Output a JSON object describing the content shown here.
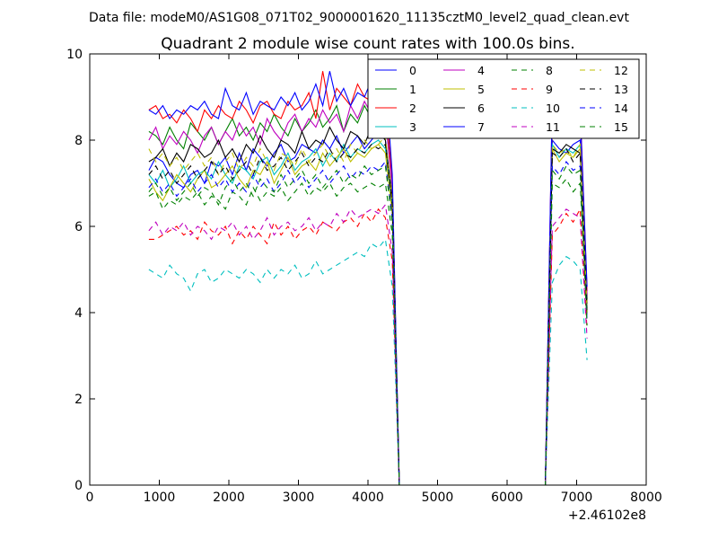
{
  "figure": {
    "suptitle": "Data file: modeM0/AS1G08_071T02_9000001620_11135cztM0_level2_quad_clean.evt",
    "x_offset_label": "+2.46102e8"
  },
  "chart_data": {
    "type": "line",
    "title": "Quadrant 2 module wise count rates with 100.0s bins.",
    "xlabel": "",
    "ylabel": "",
    "xlim": [
      0,
      8000
    ],
    "ylim": [
      0,
      10
    ],
    "xticks": [
      0,
      1000,
      2000,
      3000,
      4000,
      5000,
      6000,
      7000,
      8000
    ],
    "yticks": [
      0,
      2,
      4,
      6,
      8,
      10
    ],
    "grid": false,
    "legend": {
      "placement": "top-right",
      "columns": 4
    },
    "x": [
      850,
      950,
      1050,
      1150,
      1250,
      1350,
      1450,
      1550,
      1650,
      1750,
      1850,
      1950,
      2050,
      2150,
      2250,
      2350,
      2450,
      2550,
      2650,
      2750,
      2850,
      2950,
      3050,
      3150,
      3250,
      3350,
      3450,
      3550,
      3650,
      3750,
      3850,
      3950,
      4050,
      4150,
      4250,
      4350,
      4450,
      4550,
      6550,
      6650,
      6750,
      6850,
      6950,
      7050,
      7150
    ],
    "series": [
      {
        "name": "0",
        "color": "#0000ff",
        "dash": "solid",
        "values": [
          7.3,
          7.6,
          7.5,
          7.2,
          7.0,
          6.9,
          7.2,
          7.3,
          7.0,
          7.5,
          7.4,
          7.6,
          7.2,
          7.7,
          7.3,
          7.8,
          7.6,
          7.4,
          7.7,
          7.9,
          7.5,
          7.6,
          7.9,
          7.8,
          7.7,
          8.0,
          7.8,
          8.1,
          7.7,
          7.9,
          8.1,
          7.8,
          8.0,
          8.2,
          8.0,
          6.5,
          0.0,
          0.0,
          0.0,
          8.0,
          7.8,
          7.7,
          7.9,
          8.0,
          4.2
        ]
      },
      {
        "name": "1",
        "color": "#008000",
        "dash": "solid",
        "values": [
          8.2,
          8.1,
          7.9,
          8.3,
          8.0,
          7.8,
          8.4,
          8.2,
          8.0,
          8.3,
          7.9,
          8.2,
          8.5,
          8.1,
          8.3,
          8.0,
          8.4,
          8.2,
          8.6,
          8.3,
          8.1,
          8.5,
          8.2,
          8.4,
          8.7,
          8.3,
          8.5,
          8.8,
          8.2,
          8.6,
          8.4,
          8.8,
          8.5,
          8.9,
          8.7,
          6.8,
          0.0,
          0.0,
          0.0,
          8.6,
          8.3,
          8.5,
          8.4,
          8.7,
          4.3
        ]
      },
      {
        "name": "2",
        "color": "#ff0000",
        "dash": "solid",
        "values": [
          8.7,
          8.8,
          8.5,
          8.6,
          8.4,
          8.7,
          8.5,
          8.2,
          8.7,
          8.5,
          8.8,
          8.6,
          8.5,
          8.9,
          8.7,
          8.4,
          8.8,
          8.9,
          8.6,
          8.5,
          8.9,
          8.7,
          8.8,
          9.1,
          8.5,
          9.6,
          8.7,
          9.2,
          9.0,
          8.8,
          9.3,
          9.0,
          8.9,
          9.2,
          9.0,
          7.0,
          0.0,
          0.0,
          0.0,
          8.8,
          8.5,
          8.7,
          8.6,
          8.8,
          4.5
        ]
      },
      {
        "name": "3",
        "color": "#00bfbf",
        "dash": "solid",
        "values": [
          7.2,
          7.0,
          7.3,
          6.9,
          7.1,
          7.4,
          7.0,
          7.2,
          7.3,
          7.1,
          7.5,
          7.2,
          7.0,
          7.4,
          7.3,
          7.1,
          7.5,
          7.6,
          7.2,
          7.4,
          7.7,
          7.3,
          7.5,
          7.6,
          7.8,
          7.4,
          7.7,
          7.5,
          7.9,
          7.6,
          7.8,
          7.7,
          7.9,
          8.0,
          7.8,
          6.4,
          0.0,
          0.0,
          0.0,
          7.9,
          7.6,
          7.8,
          7.7,
          7.9,
          4.1
        ]
      },
      {
        "name": "4",
        "color": "#bf00bf",
        "dash": "solid",
        "values": [
          8.0,
          8.3,
          7.8,
          8.1,
          7.9,
          8.2,
          8.0,
          7.7,
          8.1,
          8.3,
          7.9,
          8.2,
          8.0,
          8.4,
          8.1,
          8.3,
          7.9,
          8.5,
          8.2,
          8.0,
          8.4,
          8.6,
          8.2,
          8.5,
          8.3,
          8.7,
          8.4,
          8.6,
          8.2,
          8.8,
          8.5,
          8.9,
          8.6,
          8.8,
          8.5,
          6.9,
          0.0,
          0.0,
          0.0,
          9.0,
          8.6,
          8.8,
          8.7,
          8.6,
          4.4
        ]
      },
      {
        "name": "5",
        "color": "#bfbf00",
        "dash": "solid",
        "values": [
          7.1,
          6.8,
          6.6,
          6.9,
          7.2,
          7.0,
          6.8,
          7.1,
          7.3,
          6.9,
          7.0,
          7.2,
          7.4,
          7.1,
          6.9,
          7.3,
          7.2,
          7.5,
          7.0,
          7.3,
          7.6,
          7.2,
          7.4,
          7.5,
          7.3,
          7.7,
          7.4,
          7.6,
          7.8,
          7.5,
          7.7,
          7.6,
          7.8,
          7.9,
          7.7,
          6.3,
          0.0,
          0.0,
          0.0,
          7.8,
          7.5,
          7.7,
          7.6,
          7.8,
          4.0
        ]
      },
      {
        "name": "6",
        "color": "#000000",
        "dash": "solid",
        "values": [
          7.5,
          7.6,
          7.8,
          7.4,
          7.7,
          7.5,
          7.9,
          7.8,
          7.6,
          7.7,
          8.0,
          7.6,
          7.8,
          7.5,
          7.9,
          7.7,
          8.1,
          7.8,
          7.6,
          8.0,
          7.9,
          7.7,
          8.2,
          7.8,
          8.0,
          7.9,
          8.3,
          8.0,
          7.8,
          8.2,
          8.1,
          7.9,
          8.3,
          8.2,
          8.0,
          6.6,
          0.0,
          0.0,
          0.0,
          7.8,
          7.7,
          7.9,
          7.8,
          7.7,
          4.2
        ]
      },
      {
        "name": "7",
        "color": "#0000ff",
        "dash": "solid",
        "values": [
          8.7,
          8.6,
          8.8,
          8.5,
          8.7,
          8.6,
          8.8,
          8.7,
          8.9,
          8.6,
          8.5,
          9.2,
          8.8,
          8.7,
          9.1,
          8.6,
          8.9,
          8.8,
          8.7,
          9.0,
          8.8,
          9.1,
          8.7,
          8.9,
          9.3,
          8.8,
          9.6,
          8.9,
          9.2,
          8.8,
          9.1,
          9.0,
          9.4,
          9.2,
          9.5,
          7.2,
          0.0,
          0.0,
          0.0,
          9.0,
          8.7,
          8.9,
          8.8,
          8.7,
          4.6
        ]
      },
      {
        "name": "8",
        "color": "#008000",
        "dash": "dashed",
        "values": [
          6.7,
          6.8,
          6.4,
          6.6,
          6.5,
          6.7,
          6.6,
          6.8,
          6.5,
          6.7,
          6.6,
          6.4,
          6.8,
          6.7,
          6.5,
          6.9,
          6.6,
          6.8,
          6.7,
          6.9,
          6.6,
          6.8,
          7.0,
          6.7,
          6.9,
          6.8,
          7.0,
          6.7,
          6.9,
          7.0,
          6.8,
          6.9,
          7.0,
          6.9,
          7.0,
          5.8,
          0.0,
          0.0,
          0.0,
          7.0,
          6.9,
          7.1,
          6.8,
          7.0,
          3.9
        ]
      },
      {
        "name": "9",
        "color": "#ff0000",
        "dash": "dashed",
        "values": [
          5.7,
          5.7,
          5.8,
          5.9,
          6.0,
          5.8,
          5.9,
          5.7,
          6.1,
          5.9,
          5.8,
          6.0,
          5.6,
          5.9,
          5.7,
          6.0,
          5.8,
          5.6,
          6.1,
          5.8,
          6.0,
          5.7,
          5.9,
          6.0,
          5.8,
          6.1,
          6.0,
          5.9,
          6.1,
          6.2,
          6.0,
          6.3,
          6.1,
          6.4,
          6.2,
          5.2,
          0.0,
          0.0,
          0.0,
          5.8,
          6.0,
          6.3,
          6.1,
          6.4,
          3.6
        ]
      },
      {
        "name": "10",
        "color": "#00bfbf",
        "dash": "dashed",
        "values": [
          5.0,
          4.9,
          4.8,
          5.1,
          4.9,
          4.8,
          4.5,
          4.9,
          5.0,
          4.7,
          4.8,
          5.0,
          4.9,
          4.8,
          5.0,
          4.9,
          4.7,
          5.0,
          4.8,
          5.0,
          4.9,
          5.1,
          4.8,
          4.9,
          5.2,
          4.9,
          5.0,
          5.1,
          5.2,
          5.3,
          5.4,
          5.3,
          5.6,
          5.5,
          5.7,
          4.6,
          0.0,
          0.0,
          0.0,
          4.7,
          5.1,
          5.3,
          5.2,
          5.0,
          2.9
        ]
      },
      {
        "name": "11",
        "color": "#bf00bf",
        "dash": "dashed",
        "values": [
          5.9,
          6.1,
          5.8,
          6.0,
          5.9,
          6.1,
          5.8,
          6.0,
          5.9,
          5.7,
          6.0,
          5.9,
          6.1,
          5.8,
          6.0,
          5.7,
          5.9,
          6.2,
          5.8,
          6.0,
          6.1,
          5.9,
          6.0,
          6.2,
          5.9,
          6.1,
          6.0,
          6.3,
          6.1,
          6.4,
          6.2,
          6.3,
          6.4,
          6.3,
          6.5,
          5.4,
          0.0,
          0.0,
          0.0,
          6.0,
          6.2,
          6.4,
          6.3,
          6.2,
          3.4
        ]
      },
      {
        "name": "12",
        "color": "#bfbf00",
        "dash": "dashed",
        "values": [
          7.8,
          7.5,
          7.7,
          7.4,
          7.6,
          7.3,
          7.5,
          7.7,
          7.4,
          7.6,
          7.2,
          7.5,
          7.7,
          7.3,
          7.6,
          7.4,
          7.8,
          7.5,
          7.3,
          7.7,
          7.6,
          7.4,
          7.8,
          7.5,
          7.7,
          7.9,
          7.6,
          7.8,
          7.5,
          7.9,
          7.7,
          8.0,
          7.8,
          7.9,
          8.1,
          6.6,
          0.0,
          0.0,
          0.0,
          7.9,
          7.7,
          7.8,
          7.6,
          7.9,
          4.1
        ]
      },
      {
        "name": "13",
        "color": "#000000",
        "dash": "dashed",
        "values": [
          7.2,
          7.4,
          7.1,
          7.3,
          7.0,
          7.2,
          7.4,
          7.1,
          7.3,
          7.5,
          7.2,
          7.4,
          7.1,
          7.3,
          7.5,
          7.2,
          7.6,
          7.3,
          7.4,
          7.6,
          7.3,
          7.5,
          7.7,
          7.4,
          7.6,
          7.5,
          7.8,
          7.5,
          7.7,
          7.6,
          7.8,
          7.7,
          7.9,
          7.8,
          7.9,
          6.5,
          0.0,
          0.0,
          0.0,
          7.7,
          7.6,
          7.8,
          7.5,
          7.7,
          4.0
        ]
      },
      {
        "name": "14",
        "color": "#0000ff",
        "dash": "dashed",
        "values": [
          6.9,
          7.1,
          6.8,
          7.0,
          6.7,
          6.9,
          7.1,
          6.8,
          7.0,
          7.2,
          6.9,
          7.1,
          6.8,
          7.0,
          6.8,
          7.2,
          6.9,
          7.1,
          6.8,
          7.0,
          7.3,
          7.0,
          7.2,
          6.9,
          7.1,
          7.3,
          7.0,
          7.2,
          7.4,
          7.1,
          7.3,
          7.2,
          7.4,
          7.3,
          7.5,
          6.2,
          0.0,
          0.0,
          0.0,
          7.4,
          7.2,
          7.5,
          7.3,
          7.4,
          3.8
        ]
      },
      {
        "name": "15",
        "color": "#008000",
        "dash": "dashed",
        "values": [
          6.8,
          7.0,
          6.7,
          6.9,
          6.6,
          6.8,
          7.0,
          6.7,
          6.9,
          6.8,
          6.5,
          6.9,
          7.1,
          6.8,
          7.0,
          6.7,
          7.1,
          6.9,
          6.8,
          7.2,
          6.9,
          7.1,
          7.3,
          7.0,
          7.2,
          6.9,
          7.1,
          7.3,
          7.0,
          7.2,
          7.1,
          7.4,
          7.2,
          7.3,
          7.4,
          6.1,
          0.0,
          0.0,
          0.0,
          7.3,
          7.1,
          7.4,
          7.2,
          7.3,
          3.7
        ]
      }
    ]
  }
}
